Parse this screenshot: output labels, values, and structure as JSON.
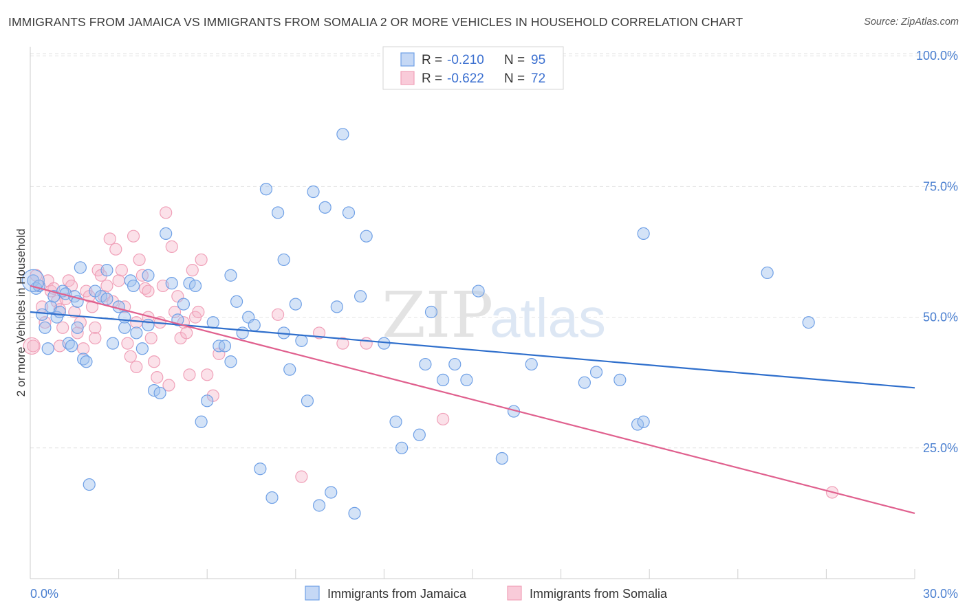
{
  "title": "IMMIGRANTS FROM JAMAICA VS IMMIGRANTS FROM SOMALIA 2 OR MORE VEHICLES IN HOUSEHOLD CORRELATION CHART",
  "source": "Source: ZipAtlas.com",
  "watermark": {
    "zip": "ZIP",
    "atlas": "atlas"
  },
  "legend": {
    "r_label": "R =",
    "n_label": "N =",
    "rows": [
      {
        "r": "-0.210",
        "n": "95"
      },
      {
        "r": "-0.622",
        "n": "72"
      }
    ]
  },
  "chart_data": {
    "type": "scatter",
    "title": "IMMIGRANTS FROM JAMAICA VS IMMIGRANTS FROM SOMALIA 2 OR MORE VEHICLES IN HOUSEHOLD CORRELATION CHART",
    "ylabel": "2 or more Vehicles in Household",
    "xlabel": "",
    "xlim": [
      0,
      30
    ],
    "ylim": [
      0,
      102
    ],
    "x_tick_labels": [
      "0.0%",
      "30.0%"
    ],
    "y_ticks": [
      25,
      50,
      75,
      100
    ],
    "y_tick_labels": [
      "25.0%",
      "50.0%",
      "75.0%",
      "100.0%"
    ],
    "grid": true,
    "legend_position": "top-center",
    "series": [
      {
        "name": "Immigrants from Jamaica",
        "color": "#6fa0e6",
        "line_color": "#2f6fcc",
        "trend": {
          "x": [
            0,
            30
          ],
          "y": [
            51.0,
            36.5
          ]
        },
        "points": [
          [
            0.1,
            57
          ],
          [
            0.2,
            55.5
          ],
          [
            0.3,
            56
          ],
          [
            0.4,
            50.5
          ],
          [
            0.5,
            48
          ],
          [
            0.6,
            44
          ],
          [
            0.7,
            52
          ],
          [
            0.8,
            54
          ],
          [
            0.9,
            50
          ],
          [
            1.0,
            51
          ],
          [
            1.1,
            55
          ],
          [
            1.2,
            54.5
          ],
          [
            1.3,
            45
          ],
          [
            1.4,
            44.5
          ],
          [
            1.5,
            54
          ],
          [
            1.6,
            48
          ],
          [
            1.7,
            59.5
          ],
          [
            1.8,
            42
          ],
          [
            1.9,
            41.5
          ],
          [
            2.0,
            18
          ],
          [
            2.2,
            55
          ],
          [
            2.4,
            54
          ],
          [
            2.6,
            59
          ],
          [
            2.8,
            45
          ],
          [
            3.0,
            52
          ],
          [
            3.2,
            50
          ],
          [
            3.4,
            57
          ],
          [
            3.5,
            56
          ],
          [
            3.6,
            47
          ],
          [
            3.8,
            44
          ],
          [
            4.0,
            58
          ],
          [
            4.2,
            36
          ],
          [
            4.4,
            35.5
          ],
          [
            4.6,
            66
          ],
          [
            4.8,
            56.5
          ],
          [
            5.0,
            49.5
          ],
          [
            5.2,
            52.5
          ],
          [
            5.4,
            56.5
          ],
          [
            5.6,
            56
          ],
          [
            5.8,
            30
          ],
          [
            6.0,
            34
          ],
          [
            6.2,
            49
          ],
          [
            6.4,
            44.5
          ],
          [
            6.6,
            44.5
          ],
          [
            6.8,
            58
          ],
          [
            7.0,
            53
          ],
          [
            7.2,
            47
          ],
          [
            7.4,
            50
          ],
          [
            7.6,
            48.5
          ],
          [
            7.8,
            21
          ],
          [
            8.0,
            74.5
          ],
          [
            8.2,
            15.5
          ],
          [
            8.4,
            70
          ],
          [
            8.6,
            61
          ],
          [
            8.8,
            40
          ],
          [
            9.0,
            52.5
          ],
          [
            9.2,
            45.5
          ],
          [
            9.4,
            34
          ],
          [
            9.6,
            74
          ],
          [
            9.8,
            14
          ],
          [
            10.0,
            71
          ],
          [
            10.2,
            16.5
          ],
          [
            10.4,
            52
          ],
          [
            10.6,
            85
          ],
          [
            10.8,
            70
          ],
          [
            11.0,
            12.5
          ],
          [
            11.2,
            54
          ],
          [
            11.4,
            65.5
          ],
          [
            12.0,
            45
          ],
          [
            12.4,
            30
          ],
          [
            12.6,
            25
          ],
          [
            13.2,
            27.5
          ],
          [
            13.4,
            41
          ],
          [
            13.6,
            51
          ],
          [
            14.0,
            38
          ],
          [
            14.4,
            41
          ],
          [
            14.8,
            38
          ],
          [
            15.2,
            55
          ],
          [
            16.0,
            23
          ],
          [
            16.4,
            32
          ],
          [
            17.0,
            41
          ],
          [
            18.8,
            37.5
          ],
          [
            19.2,
            39.5
          ],
          [
            20.0,
            38
          ],
          [
            20.6,
            29.5
          ],
          [
            20.8,
            66
          ],
          [
            20.8,
            30
          ],
          [
            25.0,
            58.5
          ],
          [
            26.4,
            49
          ],
          [
            8.6,
            47
          ],
          [
            6.8,
            41.5
          ],
          [
            4.0,
            48.5
          ],
          [
            3.2,
            48
          ],
          [
            2.6,
            53.5
          ],
          [
            1.6,
            53
          ]
        ]
      },
      {
        "name": "Immigrants from Somalia",
        "color": "#f0a0b8",
        "line_color": "#e0608e",
        "trend": {
          "x": [
            0,
            30
          ],
          "y": [
            56.0,
            12.5
          ]
        },
        "points": [
          [
            0.1,
            44.5
          ],
          [
            0.2,
            58
          ],
          [
            0.3,
            56
          ],
          [
            0.4,
            52
          ],
          [
            0.5,
            49
          ],
          [
            0.6,
            57
          ],
          [
            0.7,
            55
          ],
          [
            0.8,
            55.5
          ],
          [
            0.9,
            53
          ],
          [
            1.0,
            51.5
          ],
          [
            1.1,
            48
          ],
          [
            1.2,
            53.5
          ],
          [
            1.3,
            57
          ],
          [
            1.4,
            56
          ],
          [
            1.5,
            51
          ],
          [
            1.6,
            47
          ],
          [
            1.7,
            49
          ],
          [
            1.8,
            44
          ],
          [
            1.9,
            55
          ],
          [
            2.0,
            54
          ],
          [
            2.1,
            52
          ],
          [
            2.2,
            48
          ],
          [
            2.3,
            59
          ],
          [
            2.4,
            58
          ],
          [
            2.5,
            54
          ],
          [
            2.6,
            56
          ],
          [
            2.7,
            65
          ],
          [
            2.8,
            53
          ],
          [
            2.9,
            63
          ],
          [
            3.0,
            57
          ],
          [
            3.1,
            59
          ],
          [
            3.2,
            52
          ],
          [
            3.3,
            45
          ],
          [
            3.4,
            42.5
          ],
          [
            3.5,
            65.5
          ],
          [
            3.6,
            49
          ],
          [
            3.7,
            61
          ],
          [
            3.8,
            58
          ],
          [
            3.9,
            55.5
          ],
          [
            4.0,
            50
          ],
          [
            4.1,
            46
          ],
          [
            4.2,
            41.5
          ],
          [
            4.3,
            38.5
          ],
          [
            4.4,
            49
          ],
          [
            4.5,
            56
          ],
          [
            4.6,
            70
          ],
          [
            4.7,
            37
          ],
          [
            4.8,
            63.5
          ],
          [
            4.9,
            51
          ],
          [
            5.0,
            54
          ],
          [
            5.1,
            46
          ],
          [
            5.2,
            49
          ],
          [
            5.3,
            47
          ],
          [
            5.4,
            39
          ],
          [
            5.5,
            59
          ],
          [
            5.6,
            50
          ],
          [
            5.7,
            51
          ],
          [
            5.8,
            61
          ],
          [
            6.0,
            39
          ],
          [
            6.2,
            35
          ],
          [
            6.4,
            43
          ],
          [
            8.4,
            50.5
          ],
          [
            9.2,
            19.5
          ],
          [
            9.8,
            47
          ],
          [
            10.6,
            45
          ],
          [
            11.4,
            45
          ],
          [
            14.0,
            30.5
          ],
          [
            27.2,
            16.5
          ],
          [
            1.0,
            44.5
          ],
          [
            2.2,
            46
          ],
          [
            3.6,
            40.5
          ],
          [
            4.0,
            55
          ]
        ]
      }
    ]
  }
}
